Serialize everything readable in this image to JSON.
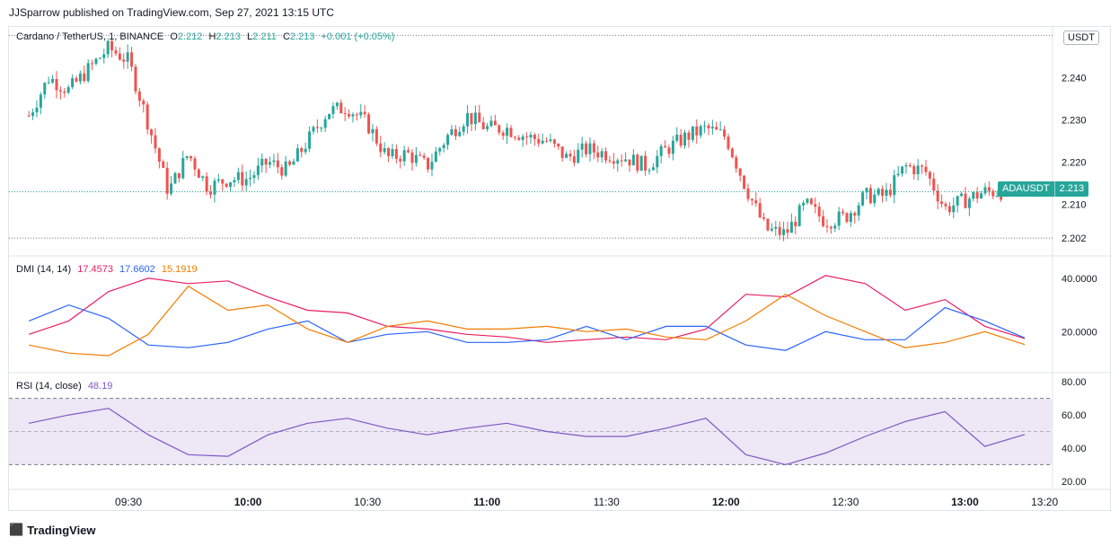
{
  "publisher_line": "JJSparrow published on TradingView.com, Sep 27, 2021 13:15 UTC",
  "main": {
    "symbol_title": "Cardano / TetherUS, 1, BINANCE",
    "o_label": "O",
    "o_value": "2.212",
    "h_label": "H",
    "h_value": "2.213",
    "l_label": "L",
    "l_value": "2.211",
    "c_label": "C",
    "c_value": "2.213",
    "change": "+0.001 (+0.05%)",
    "currency": "USDT",
    "price_tag_symbol": "ADAUSDT",
    "price_tag_value": "2.213",
    "price_axis": [
      "2.240",
      "2.230",
      "2.220",
      "2.210",
      "2.202"
    ]
  },
  "dmi": {
    "label": "DMI (14, 14)",
    "plus_di": "17.4573",
    "minus_di": "17.6602",
    "adx": "15.1919",
    "axis": [
      "40.0000",
      "20.0000"
    ]
  },
  "rsi": {
    "label": "RSI (14, close)",
    "value": "48.19",
    "axis": [
      "80.00",
      "60.00",
      "40.00",
      "20.00"
    ]
  },
  "time_axis": [
    {
      "label": "09:30",
      "bold": false
    },
    {
      "label": "10:00",
      "bold": true
    },
    {
      "label": "10:30",
      "bold": false
    },
    {
      "label": "11:00",
      "bold": true
    },
    {
      "label": "11:30",
      "bold": false
    },
    {
      "label": "12:00",
      "bold": true
    },
    {
      "label": "12:30",
      "bold": false
    },
    {
      "label": "13:00",
      "bold": true
    },
    {
      "label": "13:20",
      "bold": false
    }
  ],
  "footer": {
    "brand": "TradingView"
  },
  "colors": {
    "up": "#26a69a",
    "down": "#ef5350",
    "plus_di": "#e91e63",
    "minus_di": "#2962ff",
    "adx": "#f57c00",
    "rsi": "#7e57c2",
    "rsi_band": "#ede7f6"
  },
  "chart_data": [
    {
      "type": "candlestick",
      "title": "Cardano / TetherUS, 1, BINANCE",
      "ylim": [
        2.198,
        2.252
      ],
      "close_points": [
        [
          "09:05",
          2.231
        ],
        [
          "09:10",
          2.24
        ],
        [
          "09:15",
          2.237
        ],
        [
          "09:20",
          2.242
        ],
        [
          "09:25",
          2.247
        ],
        [
          "09:30",
          2.244
        ],
        [
          "09:35",
          2.229
        ],
        [
          "09:40",
          2.213
        ],
        [
          "09:45",
          2.222
        ],
        [
          "09:50",
          2.214
        ],
        [
          "09:55",
          2.216
        ],
        [
          "10:00",
          2.216
        ],
        [
          "10:05",
          2.22
        ],
        [
          "10:10",
          2.218
        ],
        [
          "10:15",
          2.225
        ],
        [
          "10:20",
          2.232
        ],
        [
          "10:25",
          2.233
        ],
        [
          "10:30",
          2.229
        ],
        [
          "10:35",
          2.221
        ],
        [
          "10:40",
          2.222
        ],
        [
          "10:45",
          2.219
        ],
        [
          "10:50",
          2.226
        ],
        [
          "10:55",
          2.231
        ],
        [
          "11:00",
          2.228
        ],
        [
          "11:05",
          2.228
        ],
        [
          "11:10",
          2.226
        ],
        [
          "11:15",
          2.225
        ],
        [
          "11:20",
          2.221
        ],
        [
          "11:25",
          2.223
        ],
        [
          "11:30",
          2.222
        ],
        [
          "11:35",
          2.221
        ],
        [
          "11:40",
          2.219
        ],
        [
          "11:45",
          2.223
        ],
        [
          "11:50",
          2.226
        ],
        [
          "11:55",
          2.228
        ],
        [
          "12:00",
          2.226
        ],
        [
          "12:05",
          2.214
        ],
        [
          "12:10",
          2.204
        ],
        [
          "12:15",
          2.203
        ],
        [
          "12:20",
          2.21
        ],
        [
          "12:25",
          2.206
        ],
        [
          "12:30",
          2.207
        ],
        [
          "12:35",
          2.212
        ],
        [
          "12:40",
          2.212
        ],
        [
          "12:45",
          2.219
        ],
        [
          "12:50",
          2.218
        ],
        [
          "12:55",
          2.209
        ],
        [
          "13:00",
          2.211
        ],
        [
          "13:05",
          2.213
        ],
        [
          "13:10",
          2.213
        ]
      ]
    },
    {
      "type": "line",
      "title": "DMI (14, 14)",
      "ylim": [
        5,
        48
      ],
      "x": [
        "09:05",
        "09:15",
        "09:25",
        "09:35",
        "09:45",
        "09:55",
        "10:05",
        "10:15",
        "10:25",
        "10:35",
        "10:45",
        "10:55",
        "11:05",
        "11:15",
        "11:25",
        "11:35",
        "11:45",
        "11:55",
        "12:05",
        "12:15",
        "12:25",
        "12:35",
        "12:45",
        "12:55",
        "13:05",
        "13:15"
      ],
      "series": [
        {
          "name": "+DI",
          "values": [
            19,
            24,
            35,
            40,
            38,
            39,
            33,
            28,
            27,
            22,
            21,
            19,
            18,
            16,
            17,
            18,
            17,
            21,
            34,
            33,
            41,
            38,
            28,
            32,
            22,
            17.4573
          ]
        },
        {
          "name": "-DI",
          "values": [
            24,
            30,
            25,
            15,
            14,
            16,
            21,
            24,
            16,
            19,
            20,
            16,
            16,
            17,
            22,
            17,
            22,
            22,
            15,
            13,
            20,
            17,
            17,
            29,
            24,
            17.6602
          ]
        },
        {
          "name": "ADX",
          "values": [
            15,
            12,
            11,
            19,
            37,
            28,
            30,
            21,
            16,
            22,
            24,
            21,
            21,
            22,
            20,
            21,
            18,
            17,
            24,
            34,
            26,
            20,
            14,
            16,
            20,
            15.1919
          ]
        }
      ]
    },
    {
      "type": "line",
      "title": "RSI (14, close)",
      "ylim": [
        15,
        85
      ],
      "bands": [
        30,
        50,
        70
      ],
      "x": [
        "09:05",
        "09:15",
        "09:25",
        "09:35",
        "09:45",
        "09:55",
        "10:05",
        "10:15",
        "10:25",
        "10:35",
        "10:45",
        "10:55",
        "11:05",
        "11:15",
        "11:25",
        "11:35",
        "11:45",
        "11:55",
        "12:05",
        "12:15",
        "12:25",
        "12:35",
        "12:45",
        "12:55",
        "13:05",
        "13:15"
      ],
      "series": [
        {
          "name": "RSI",
          "values": [
            55,
            60,
            64,
            48,
            36,
            35,
            48,
            55,
            58,
            52,
            48,
            52,
            55,
            50,
            47,
            47,
            52,
            58,
            36,
            30,
            37,
            47,
            56,
            62,
            41,
            48.19
          ]
        }
      ]
    }
  ]
}
